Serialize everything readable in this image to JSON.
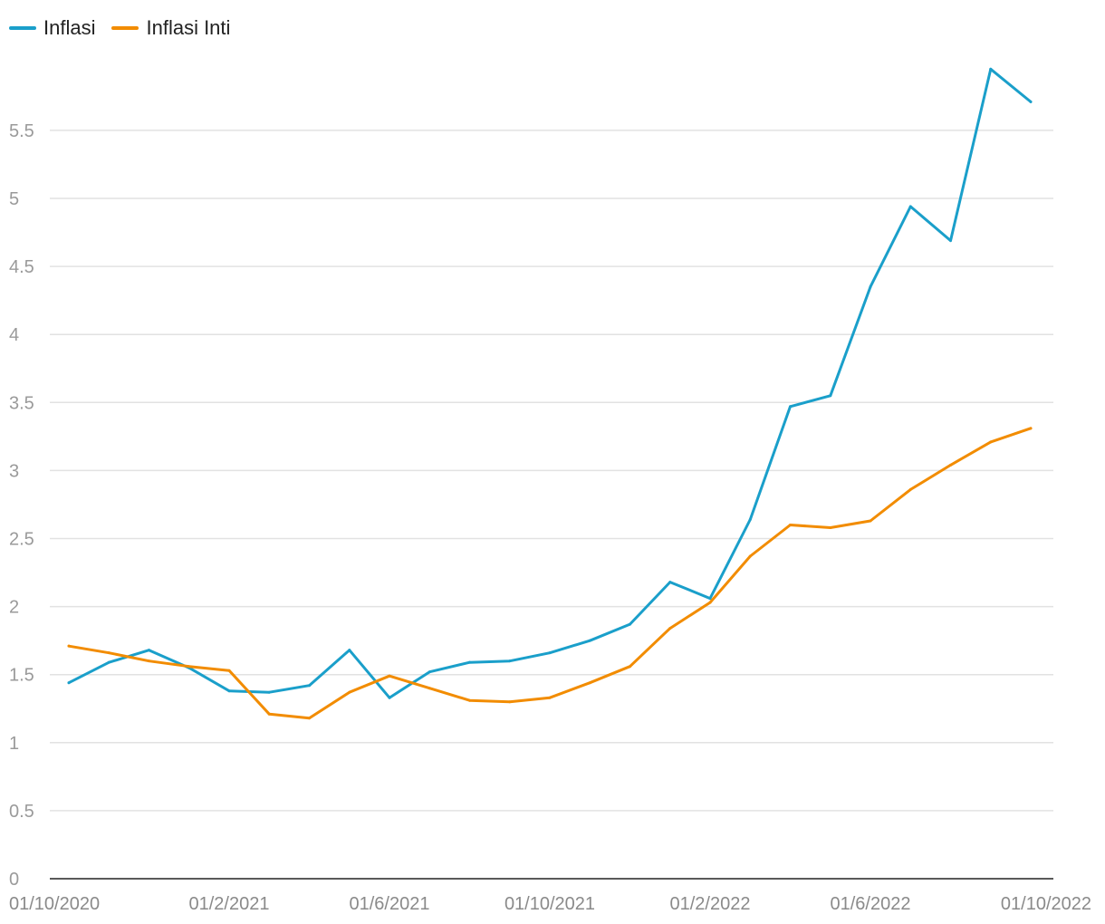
{
  "chart_data": {
    "type": "line",
    "title": "",
    "xlabel": "",
    "ylabel": "",
    "ylim": [
      0,
      6
    ],
    "yticks": [
      0,
      0.5,
      1,
      1.5,
      2,
      2.5,
      3,
      3.5,
      4,
      4.5,
      5,
      5.5
    ],
    "ytick_labels": [
      "0",
      "0.5",
      "1",
      "1.5",
      "2",
      "2.5",
      "3",
      "3.5",
      "4",
      "4.5",
      "5",
      "5.5"
    ],
    "x": [
      "01/10/2020",
      "01/11/2020",
      "01/12/2020",
      "01/1/2021",
      "01/2/2021",
      "01/3/2021",
      "01/4/2021",
      "01/5/2021",
      "01/6/2021",
      "01/7/2021",
      "01/8/2021",
      "01/9/2021",
      "01/10/2021",
      "01/11/2021",
      "01/12/2021",
      "01/1/2022",
      "01/2/2022",
      "01/3/2022",
      "01/4/2022",
      "01/5/2022",
      "01/6/2022",
      "01/7/2022",
      "01/8/2022",
      "01/9/2022",
      "01/10/2022"
    ],
    "xtick_labels": [
      "01/10/2020",
      "01/2/2021",
      "01/6/2021",
      "01/10/2021",
      "01/2/2022",
      "01/6/2022",
      "01/10/2022"
    ],
    "xtick_indices": [
      0,
      4,
      8,
      12,
      16,
      20,
      24
    ],
    "grid": true,
    "legend_position": "top-left",
    "series": [
      {
        "name": "Inflasi",
        "color": "#1a9fca",
        "values": [
          1.44,
          1.59,
          1.68,
          1.55,
          1.38,
          1.37,
          1.42,
          1.68,
          1.33,
          1.52,
          1.59,
          1.6,
          1.66,
          1.75,
          1.87,
          2.18,
          2.06,
          2.64,
          3.47,
          3.55,
          4.35,
          4.94,
          4.69,
          5.95,
          5.71
        ]
      },
      {
        "name": "Inflasi Inti",
        "color": "#f28c00",
        "values": [
          1.71,
          1.66,
          1.6,
          1.56,
          1.53,
          1.21,
          1.18,
          1.37,
          1.49,
          1.4,
          1.31,
          1.3,
          1.33,
          1.44,
          1.56,
          1.84,
          2.03,
          2.37,
          2.6,
          2.58,
          2.63,
          2.86,
          3.04,
          3.21,
          3.31
        ]
      }
    ]
  }
}
